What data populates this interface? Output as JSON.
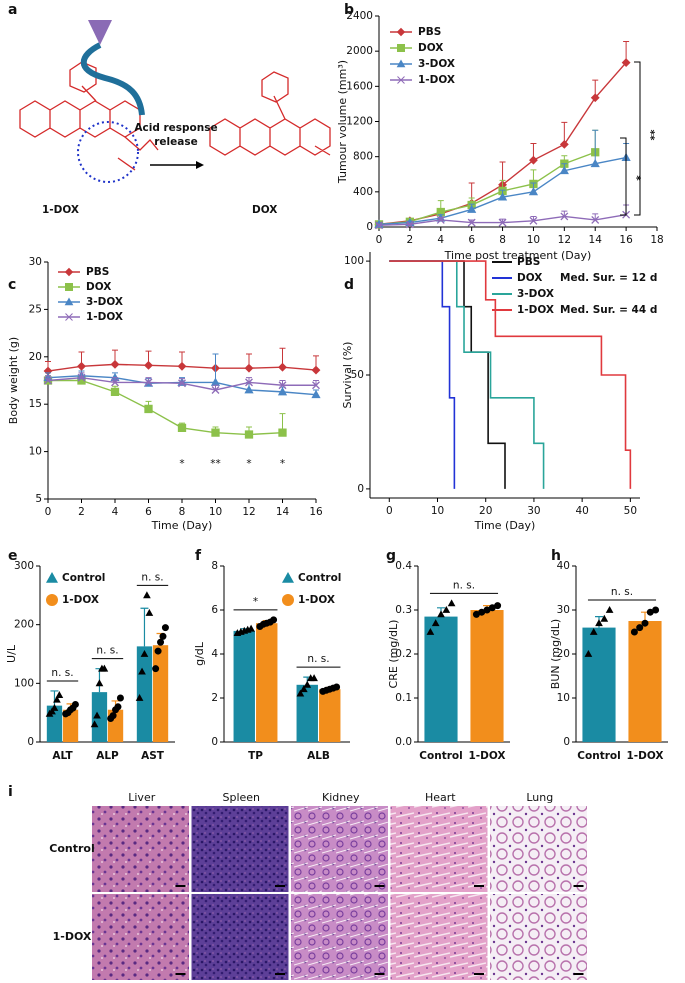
{
  "panel_a": {
    "label": "a",
    "arrow_text": [
      "Acid response",
      "release"
    ],
    "compounds": [
      "1-DOX",
      "DOX"
    ]
  },
  "chart_data": [
    {
      "type": "line",
      "panel": "b",
      "xlabel": "Time post treatment (Day)",
      "ylabel": "Tumour volume (mm³)",
      "x": [
        0,
        2,
        4,
        6,
        8,
        10,
        12,
        14,
        16
      ],
      "xlim": [
        0,
        18
      ],
      "xticks": [
        0,
        2,
        4,
        6,
        8,
        10,
        12,
        14,
        16,
        18
      ],
      "ylim": [
        0,
        2400
      ],
      "yticks": [
        0,
        400,
        800,
        1200,
        1600,
        2000,
        2400
      ],
      "legend": "upper left",
      "series": [
        {
          "name": "PBS",
          "color": "#c8373a",
          "marker": "diamond",
          "values": [
            30,
            70,
            150,
            270,
            480,
            760,
            940,
            1470,
            1870
          ],
          "errors": [
            10,
            20,
            60,
            230,
            260,
            190,
            250,
            200,
            240
          ]
        },
        {
          "name": "DOX",
          "color": "#8cc14a",
          "marker": "square",
          "values": [
            30,
            60,
            170,
            250,
            410,
            490,
            720,
            850,
            null
          ],
          "errors": [
            10,
            20,
            130,
            80,
            120,
            160,
            90,
            250,
            null
          ]
        },
        {
          "name": "3-DOX",
          "color": "#4a86c5",
          "marker": "triangle",
          "values": [
            30,
            50,
            100,
            200,
            340,
            400,
            640,
            720,
            790
          ],
          "errors": [
            10,
            15,
            40,
            60,
            80,
            100,
            80,
            380,
            160
          ]
        },
        {
          "name": "1-DOX",
          "color": "#8e6bb8",
          "marker": "x",
          "values": [
            20,
            30,
            80,
            50,
            50,
            70,
            120,
            80,
            140
          ],
          "errors": [
            10,
            10,
            30,
            30,
            40,
            50,
            60,
            70,
            110
          ]
        }
      ],
      "annotations": [
        "**",
        "*"
      ]
    },
    {
      "type": "line",
      "panel": "c",
      "xlabel": "Time (Day)",
      "ylabel": "Body weight (g)",
      "x": [
        0,
        2,
        4,
        6,
        8,
        10,
        12,
        14,
        16
      ],
      "xlim": [
        0,
        16
      ],
      "xticks": [
        0,
        2,
        4,
        6,
        8,
        10,
        12,
        14,
        16
      ],
      "ylim": [
        5,
        30
      ],
      "yticks": [
        5,
        10,
        15,
        20,
        25,
        30
      ],
      "legend": "upper left",
      "series": [
        {
          "name": "PBS",
          "color": "#c8373a",
          "marker": "diamond",
          "values": [
            18.5,
            19,
            19.2,
            19.1,
            19,
            18.8,
            18.8,
            18.9,
            18.6
          ],
          "errors": [
            1,
            1.5,
            1.5,
            1.5,
            1.5,
            1.5,
            1.5,
            2,
            1.5
          ]
        },
        {
          "name": "DOX",
          "color": "#8cc14a",
          "marker": "square",
          "values": [
            17.5,
            17.5,
            16.3,
            14.5,
            12.5,
            12,
            11.8,
            12,
            null
          ],
          "errors": [
            0.5,
            0.5,
            0.6,
            0.8,
            0.5,
            0.6,
            0.8,
            2,
            null
          ]
        },
        {
          "name": "3-DOX",
          "color": "#4a86c5",
          "marker": "triangle",
          "values": [
            17.8,
            18,
            17.8,
            17.2,
            17.3,
            17.3,
            16.5,
            16.3,
            16
          ],
          "errors": [
            0.5,
            0.5,
            0.5,
            0.5,
            0.5,
            3,
            0.8,
            0.5,
            0.5
          ]
        },
        {
          "name": "1-DOX",
          "color": "#8e6bb8",
          "marker": "x",
          "values": [
            17.5,
            17.8,
            17.3,
            17.3,
            17.2,
            16.5,
            17.3,
            17,
            17
          ],
          "errors": [
            0.5,
            0.5,
            0.5,
            0.5,
            0.5,
            0.5,
            0.5,
            0.5,
            0.5
          ]
        }
      ],
      "annotations": [
        {
          "text": "*",
          "x": 8
        },
        {
          "text": "**",
          "x": 10
        },
        {
          "text": "*",
          "x": 12
        },
        {
          "text": "*",
          "x": 14
        }
      ]
    },
    {
      "type": "step",
      "panel": "d",
      "xlabel": "Time (Day)",
      "ylabel": "Survival (%)",
      "xlim": [
        -4,
        52
      ],
      "xticks": [
        0,
        10,
        20,
        30,
        40,
        50
      ],
      "ylim": [
        -4,
        104
      ],
      "yticks": [
        0,
        50,
        100
      ],
      "legend": "upper right",
      "series": [
        {
          "name": "PBS",
          "color": "#111111",
          "x": [
            0,
            15.5,
            17,
            20.5,
            24
          ],
          "values": [
            100,
            80,
            60,
            20,
            0
          ]
        },
        {
          "name": "DOX",
          "color": "#2233d6",
          "x": [
            0,
            11,
            12.5,
            13.5
          ],
          "values": [
            100,
            80,
            40,
            0
          ],
          "median_label": "Med. Sur. = 12 d"
        },
        {
          "name": "3-DOX",
          "color": "#2aa59a",
          "x": [
            0,
            14,
            15.5,
            21,
            30,
            32
          ],
          "values": [
            100,
            80,
            60,
            40,
            20,
            0
          ]
        },
        {
          "name": "1-DOX",
          "color": "#e0393e",
          "x": [
            0,
            20,
            22,
            44,
            49,
            50
          ],
          "values": [
            100,
            83,
            67,
            50,
            17,
            0
          ],
          "median_label": "Med. Sur. = 44 d"
        }
      ]
    },
    {
      "type": "bar",
      "panel": "e",
      "ylabel": "U/L",
      "categories": [
        "ALT",
        "ALP",
        "AST"
      ],
      "ylim": [
        0,
        300
      ],
      "yticks": [
        0,
        100,
        200,
        300
      ],
      "legend": "upper left",
      "series": [
        {
          "name": "Control",
          "color": "#1a8ba3",
          "marker": "triangle",
          "values": [
            62,
            85,
            163
          ],
          "errors": [
            25,
            40,
            65
          ],
          "points": [
            [
              48,
              52,
              58,
              72,
              80
            ],
            [
              30,
              45,
              100,
              125,
              125
            ],
            [
              75,
              120,
              150,
              250,
              220
            ]
          ]
        },
        {
          "name": "1-DOX",
          "color": "#f28e1c",
          "marker": "circle",
          "values": [
            55,
            55,
            165
          ],
          "errors": [
            10,
            15,
            20
          ],
          "points": [
            [
              48,
              50,
              55,
              58,
              64
            ],
            [
              40,
              45,
              55,
              60,
              75
            ],
            [
              125,
              155,
              170,
              180,
              195
            ]
          ]
        }
      ],
      "annotations": [
        "n. s.",
        "n. s.",
        "n. s."
      ]
    },
    {
      "type": "bar",
      "panel": "f",
      "ylabel": "g/dL",
      "categories": [
        "TP",
        "ALB"
      ],
      "ylim": [
        0,
        8
      ],
      "yticks": [
        0,
        2,
        4,
        6,
        8
      ],
      "legend": "upper right",
      "series": [
        {
          "name": "Control",
          "color": "#1a8ba3",
          "marker": "triangle",
          "values": [
            5.05,
            2.6
          ],
          "errors": [
            0.1,
            0.35
          ],
          "points": [
            [
              4.95,
              5.0,
              5.05,
              5.1,
              5.15
            ],
            [
              2.2,
              2.4,
              2.6,
              2.9,
              2.9
            ]
          ]
        },
        {
          "name": "1-DOX",
          "color": "#f28e1c",
          "marker": "circle",
          "values": [
            5.4,
            2.4
          ],
          "errors": [
            0.12,
            0.08
          ],
          "points": [
            [
              5.25,
              5.35,
              5.4,
              5.45,
              5.55
            ],
            [
              2.3,
              2.35,
              2.4,
              2.45,
              2.5
            ]
          ]
        }
      ],
      "annotations": [
        "*",
        "n. s."
      ]
    },
    {
      "type": "bar",
      "panel": "g",
      "ylabel": "CRE (mg/dL)",
      "categories": [
        "Control",
        "1-DOX"
      ],
      "ylim": [
        0,
        0.4
      ],
      "yticks": [
        {
          "value": 0,
          "label": "0.0"
        },
        0.1,
        0.2,
        0.3,
        0.4
      ],
      "values": [
        0.285,
        0.3
      ],
      "errors": [
        0.02,
        0.01
      ],
      "colors": [
        "#1a8ba3",
        "#f28e1c"
      ],
      "markers": [
        "triangle",
        "circle"
      ],
      "points": [
        [
          0.25,
          0.27,
          0.29,
          0.3,
          0.315
        ],
        [
          0.29,
          0.295,
          0.3,
          0.305,
          0.31
        ]
      ],
      "annotations": [
        "n. s."
      ]
    },
    {
      "type": "bar",
      "panel": "h",
      "ylabel": "BUN (mg/dL)",
      "categories": [
        "Control",
        "1-DOX"
      ],
      "ylim": [
        0,
        40
      ],
      "yticks": [
        0,
        10,
        20,
        30,
        40
      ],
      "values": [
        26,
        27.5
      ],
      "errors": [
        2.5,
        2
      ],
      "colors": [
        "#1a8ba3",
        "#f28e1c"
      ],
      "markers": [
        "triangle",
        "circle"
      ],
      "points": [
        [
          20,
          25,
          27,
          28,
          30
        ],
        [
          25,
          26,
          27,
          29.5,
          30
        ]
      ],
      "annotations": [
        "n. s."
      ]
    }
  ],
  "panel_i": {
    "label": "i",
    "columns": [
      "Liver",
      "Spleen",
      "Kidney",
      "Heart",
      "Lung"
    ],
    "rows": [
      "Control",
      "1-DOX"
    ]
  }
}
